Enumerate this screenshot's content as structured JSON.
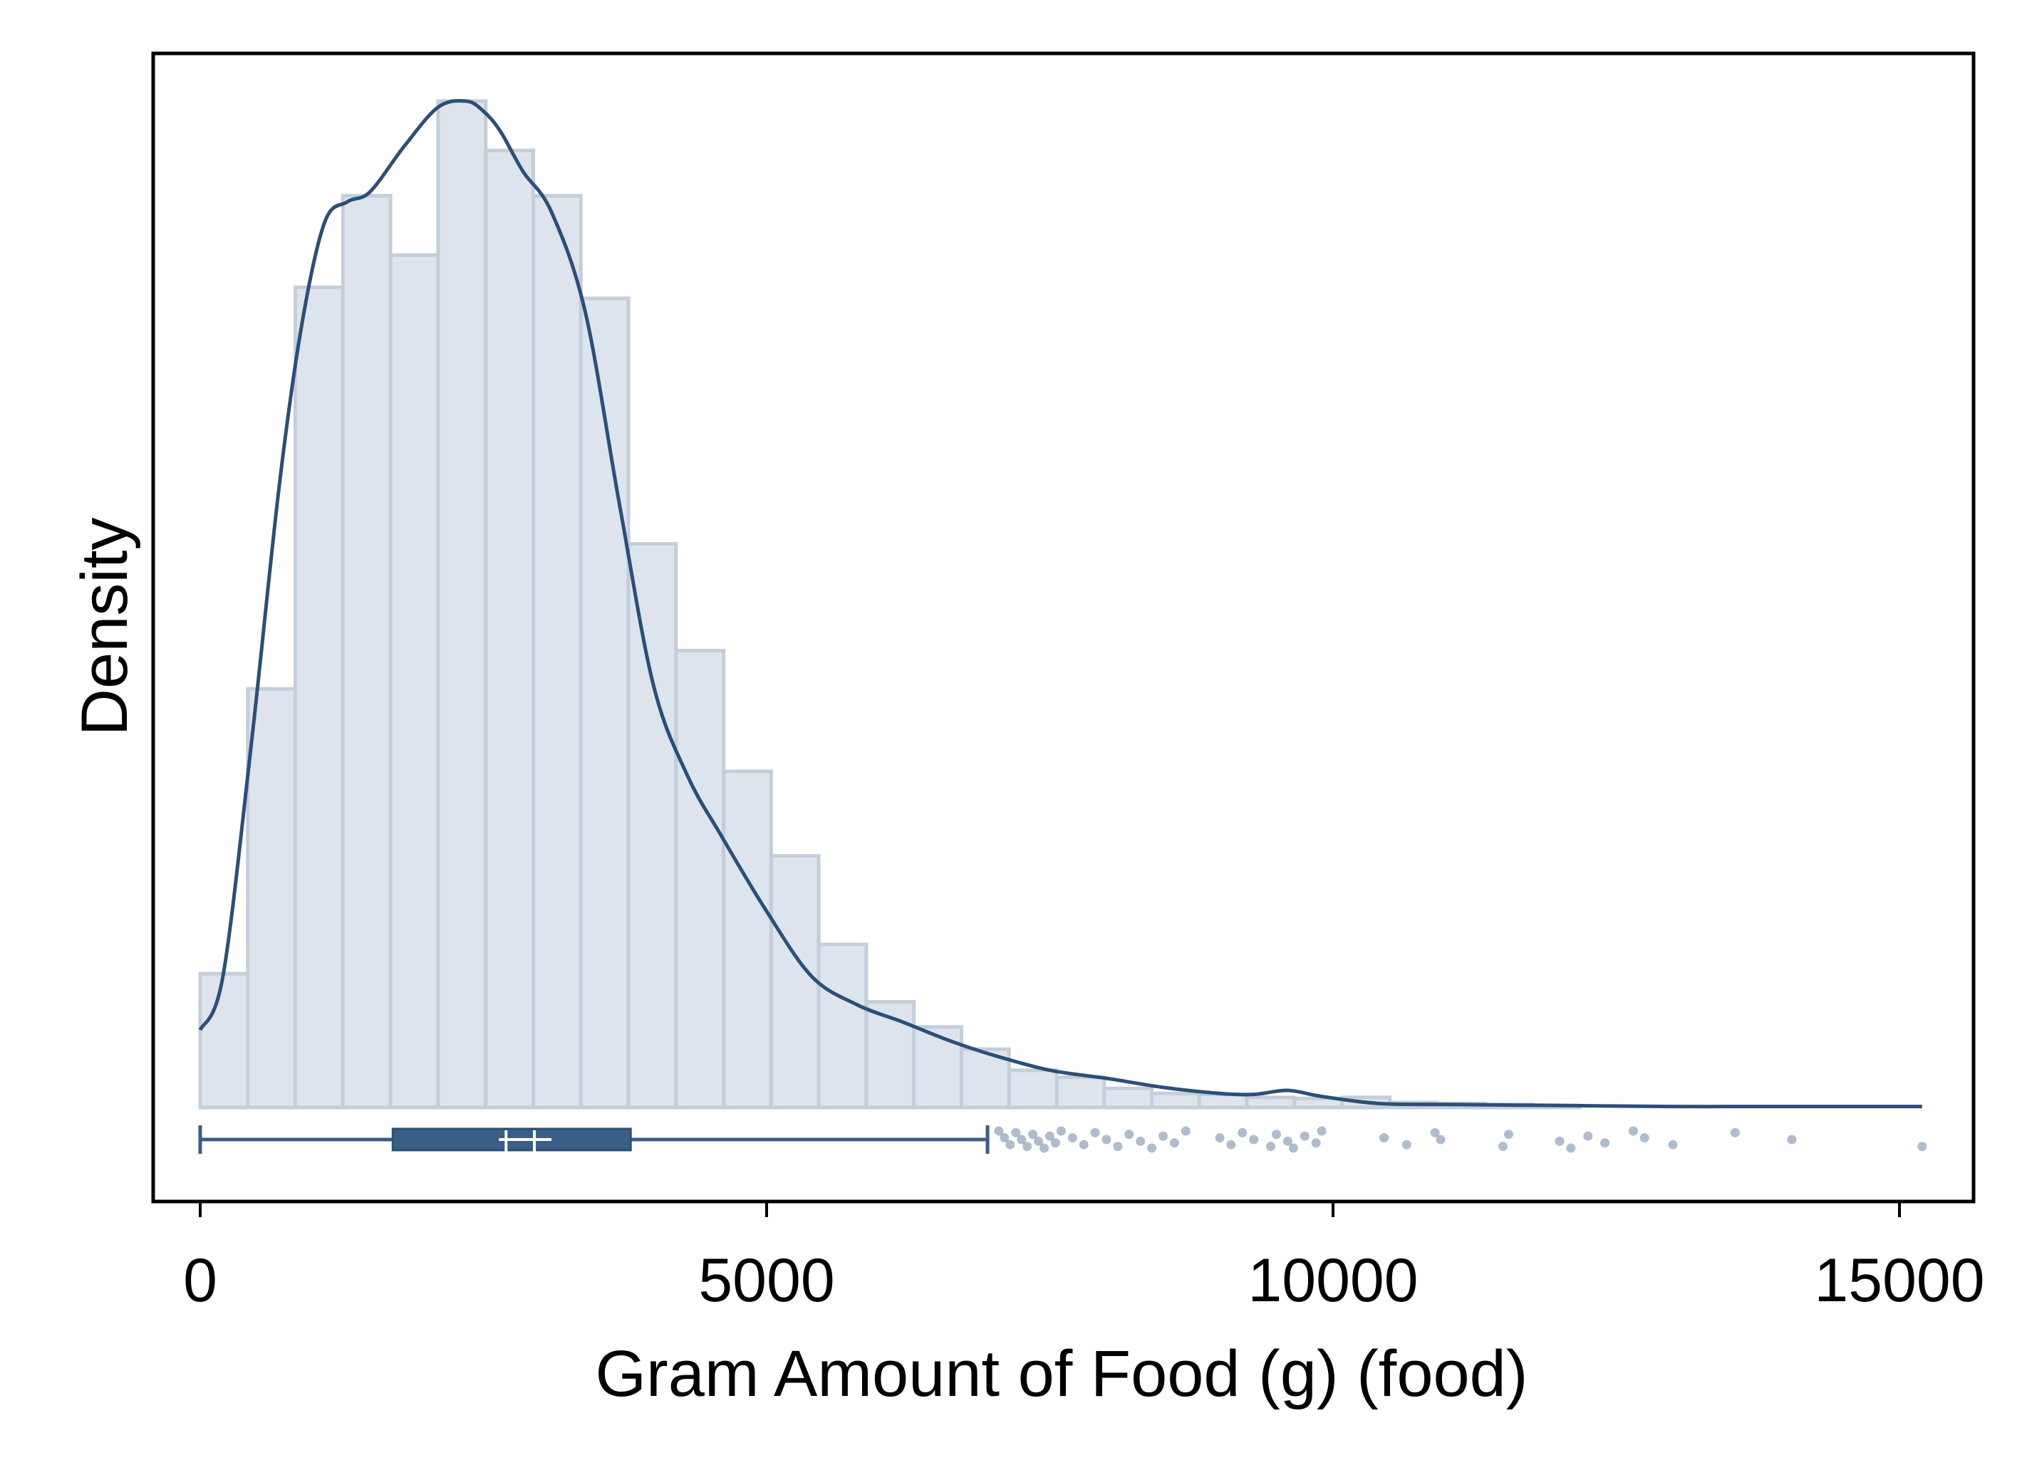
{
  "chart_data": {
    "type": "histogram",
    "xlabel": "Gram Amount of Food (g) (food)",
    "ylabel": "Density",
    "xlim": [
      -400,
      15700
    ],
    "x_ticks": [
      0,
      5000,
      10000,
      15000
    ],
    "grid": false,
    "colors": {
      "bar_fill": "#dde4ec",
      "bar_edge": "#c3ced9",
      "line": "#2b4f77",
      "box": "#3a5e86",
      "outlier": "#2b4f77"
    },
    "histogram": {
      "bin_width": 420,
      "bin_start": 0,
      "relative_heights": [
        0.133,
        0.416,
        0.815,
        0.906,
        0.847,
        1.0,
        0.951,
        0.906,
        0.804,
        0.56,
        0.454,
        0.334,
        0.25,
        0.162,
        0.105,
        0.08,
        0.058,
        0.037,
        0.03,
        0.019,
        0.014,
        0.013,
        0.01,
        0.009,
        0.01,
        0.005,
        0.004,
        0.003,
        0.002
      ]
    },
    "density_curve": {
      "x": [
        0,
        200,
        450,
        700,
        900,
        1100,
        1300,
        1500,
        1800,
        2100,
        2350,
        2500,
        2650,
        2850,
        3100,
        3400,
        3700,
        4000,
        4300,
        4600,
        5000,
        5400,
        5800,
        6200,
        6600,
        7000,
        7500,
        8000,
        8500,
        9000,
        9300,
        9600,
        9900,
        10400,
        11000,
        12000,
        13000,
        14000,
        15200
      ],
      "relative_density": [
        0.077,
        0.13,
        0.36,
        0.62,
        0.78,
        0.88,
        0.9,
        0.91,
        0.955,
        0.994,
        1.0,
        0.99,
        0.97,
        0.93,
        0.89,
        0.79,
        0.6,
        0.42,
        0.33,
        0.27,
        0.195,
        0.13,
        0.102,
        0.085,
        0.067,
        0.052,
        0.037,
        0.029,
        0.02,
        0.014,
        0.013,
        0.017,
        0.011,
        0.004,
        0.003,
        0.002,
        0.001,
        0.001,
        0.001
      ]
    },
    "boxplot": {
      "whisker_low": 0,
      "q1": 1700,
      "median": 2700,
      "mean": 2950,
      "q3": 3800,
      "whisker_high": 6950
    },
    "outliers": [
      7050,
      7100,
      7150,
      7200,
      7250,
      7300,
      7350,
      7400,
      7450,
      7500,
      7550,
      7600,
      7700,
      7800,
      7900,
      8000,
      8100,
      8200,
      8300,
      8400,
      8500,
      8600,
      8700,
      9000,
      9100,
      9200,
      9300,
      9450,
      9500,
      9600,
      9650,
      9750,
      9850,
      9900,
      10450,
      10650,
      10900,
      10950,
      11500,
      11550,
      12000,
      12100,
      12250,
      12400,
      12650,
      12750,
      13000,
      13550,
      14050,
      15200
    ]
  }
}
